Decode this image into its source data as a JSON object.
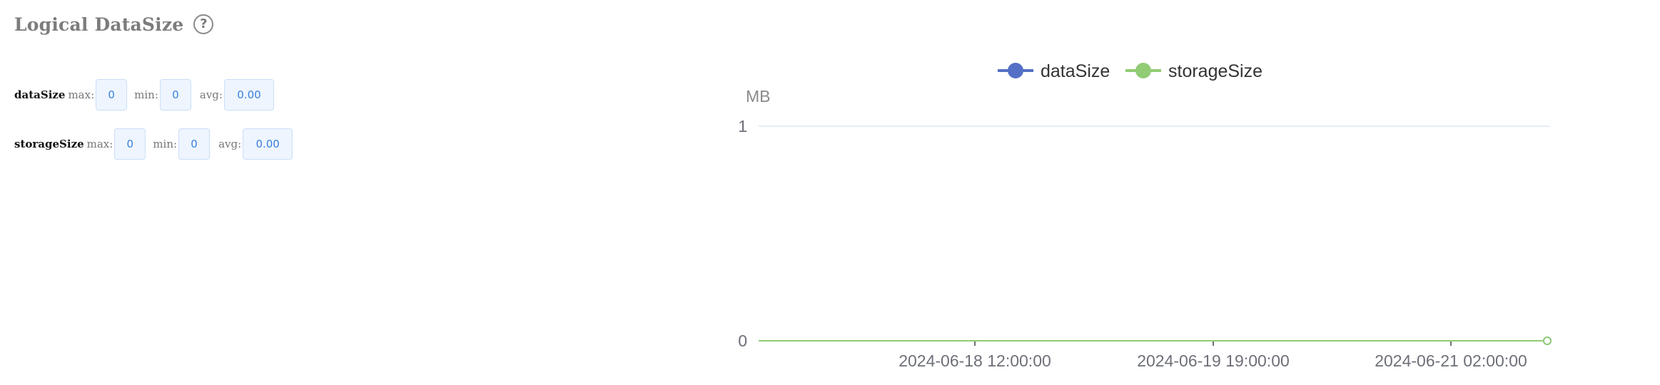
{
  "panel": {
    "title": "Logical DataSize",
    "help_icon": "question-circle-icon"
  },
  "stats": [
    {
      "name": "dataSize",
      "max_label": "max:",
      "max": "0",
      "min_label": "min:",
      "min": "0",
      "avg_label": "avg:",
      "avg": "0.00"
    },
    {
      "name": "storageSize",
      "max_label": "max:",
      "max": "0",
      "min_label": "min:",
      "min": "0",
      "avg_label": "avg:",
      "avg": "0.00"
    }
  ],
  "chart_data": {
    "type": "line",
    "title": "",
    "ylabel": "MB",
    "xlabel": "",
    "ylim": [
      0,
      1
    ],
    "yticks": [
      "0",
      "1"
    ],
    "xticks": [
      "2024-06-18 12:00:00",
      "2024-06-19 19:00:00",
      "2024-06-21 02:00:00"
    ],
    "legend_position": "top-center",
    "grid": true,
    "series": [
      {
        "name": "dataSize",
        "color": "#5470c6",
        "values": [
          0,
          0
        ]
      },
      {
        "name": "storageSize",
        "color": "#91cc75",
        "values": [
          0,
          0
        ]
      }
    ]
  }
}
